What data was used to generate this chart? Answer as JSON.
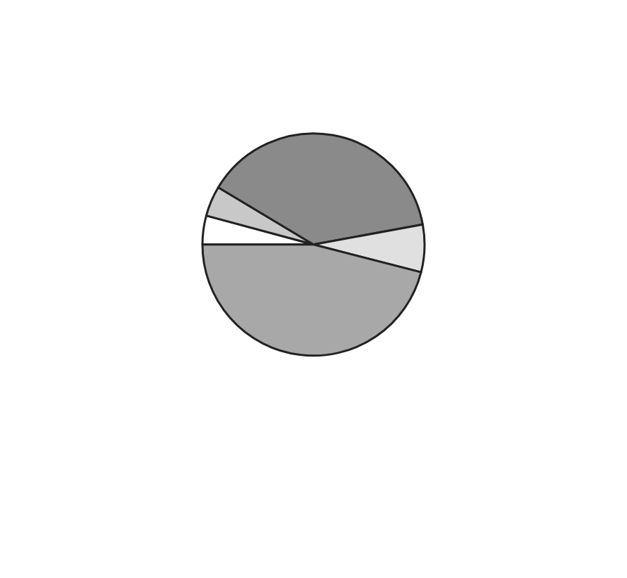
{
  "chart_data": {
    "type": "pie",
    "categories": [
      null,
      null,
      null,
      null,
      null
    ],
    "values": [
      4.2,
      4.4,
      38.5,
      6.9,
      46.0
    ],
    "colors": [
      "#ffffff",
      "#c8c8c8",
      "#8a8a8a",
      "#e0e0e0",
      "#a8a8a8"
    ]
  }
}
